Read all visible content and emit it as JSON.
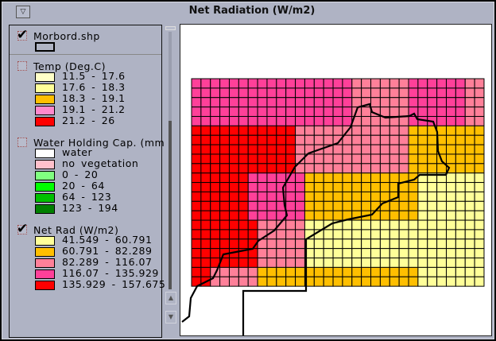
{
  "window": {
    "title": "Net Radiation (W/m2)",
    "menu_icon": "triangle-down-icon"
  },
  "legend": {
    "layers": [
      {
        "name": "Morbord.shp",
        "checked": true,
        "items": [
          {
            "label": "",
            "color": "#b0b4c4"
          }
        ]
      },
      {
        "name": "Temp (Deg.C)",
        "checked": false,
        "items": [
          {
            "label": "11.5 - 17.6",
            "color": "#ffffc8"
          },
          {
            "label": "17.6 - 18.3",
            "color": "#ffff99"
          },
          {
            "label": "18.3 - 19.1",
            "color": "#ffbf00"
          },
          {
            "label": "19.1 - 21.2",
            "color": "#ff88cc"
          },
          {
            "label": "21.2 - 26",
            "color": "#ff0000"
          }
        ]
      },
      {
        "name": "Water Holding Cap. (mm",
        "checked": false,
        "items": [
          {
            "label": "water",
            "color": "#ffffff"
          },
          {
            "label": "no vegetation",
            "color": "#ffc0cb"
          },
          {
            "label": "0 - 20",
            "color": "#80ff80"
          },
          {
            "label": "20 - 64",
            "color": "#00ff00"
          },
          {
            "label": "64 - 123",
            "color": "#00c000"
          },
          {
            "label": "123 - 194",
            "color": "#008000"
          }
        ]
      },
      {
        "name": "Net Rad (W/m2)",
        "checked": true,
        "items": [
          {
            "label": "41.549 - 60.791",
            "color": "#ffff99"
          },
          {
            "label": "60.791 - 82.289",
            "color": "#ffbf00"
          },
          {
            "label": "82.289 - 116.07",
            "color": "#ff8099"
          },
          {
            "label": "116.07 - 135.929",
            "color": "#ff4099"
          },
          {
            "label": "135.929 - 157.675",
            "color": "#ff0000"
          }
        ]
      }
    ]
  },
  "map": {
    "grid_columns": 31,
    "grid_rows": 22
  }
}
